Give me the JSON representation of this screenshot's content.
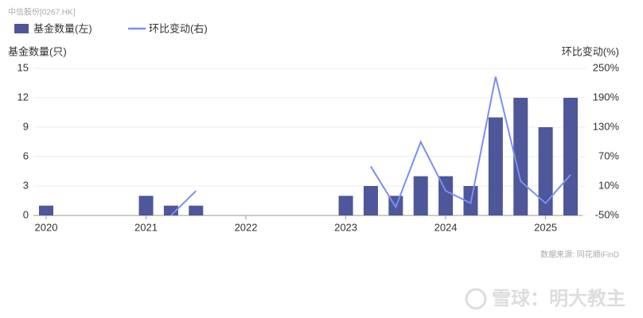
{
  "header": "中信股份[0267.HK]",
  "source": "数据来源: 同花顺iFinD",
  "watermark": "雪球：明大教主",
  "chart_data": {
    "type": "bar-line",
    "categories": [
      "2020",
      null,
      null,
      null,
      "2021",
      null,
      null,
      null,
      "2022",
      null,
      null,
      null,
      "2023",
      null,
      null,
      null,
      "2024",
      null,
      null,
      null,
      "2025",
      null
    ],
    "series": [
      {
        "name": "基金数量(左)",
        "type": "bar",
        "color": "#4d5799",
        "values": [
          1,
          0,
          0,
          0,
          2,
          1,
          1,
          0,
          0,
          0,
          0,
          0,
          2,
          3,
          2,
          4,
          4,
          3,
          10,
          12,
          9,
          12
        ]
      },
      {
        "name": "环比变动(右)",
        "type": "line",
        "axis": "y2",
        "color": "#7b8ff0",
        "values": [
          null,
          null,
          null,
          null,
          null,
          -50,
          0,
          null,
          null,
          null,
          null,
          null,
          null,
          50,
          -33,
          100,
          0,
          -25,
          233,
          20,
          -25,
          33
        ]
      }
    ],
    "ylabel": "基金数量(只)",
    "y2label": "环比变动(%)",
    "ylim": [
      0,
      15
    ],
    "yticks": [
      0,
      3,
      6,
      9,
      12,
      15
    ],
    "y2lim": [
      -50,
      250
    ],
    "y2ticks": [
      {
        "value": -50,
        "label": "-50%"
      },
      {
        "value": 10,
        "label": "10%"
      },
      {
        "value": 70,
        "label": "70%"
      },
      {
        "value": 130,
        "label": "130%"
      },
      {
        "value": 190,
        "label": "190%"
      },
      {
        "value": 250,
        "label": "250%"
      }
    ],
    "grid": true
  }
}
